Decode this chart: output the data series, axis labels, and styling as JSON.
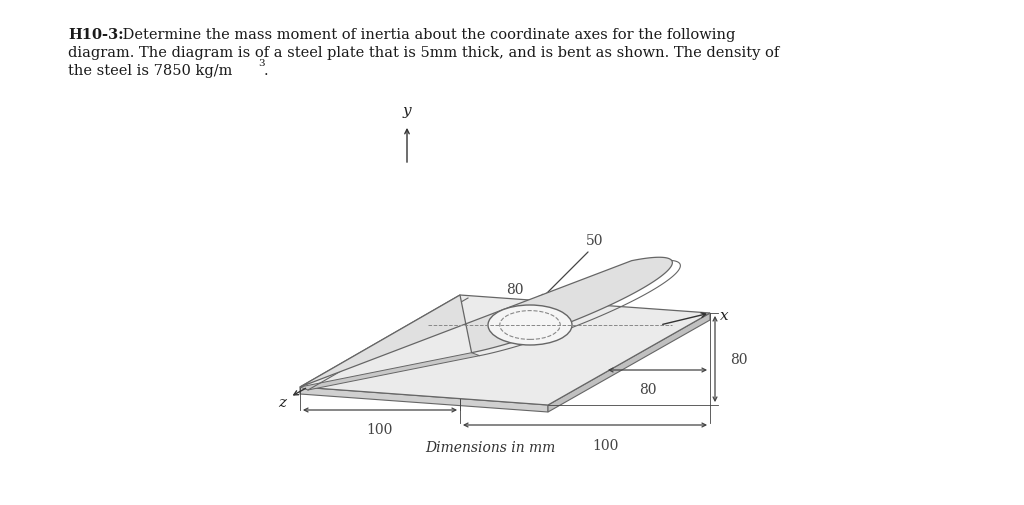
{
  "title_bold": "H10-3:",
  "title_normal": " Determine the mass moment of inertia about the coordinate axes for the following",
  "title_line2": "diagram. The diagram is of a steel plate that is 5mm thick, and is bent as shown. The density of",
  "title_line3": "the steel is 7850 kg/m",
  "title_sup": "3",
  "title_period": ".",
  "caption": "Dimensions in mm",
  "bg_color": "#ffffff",
  "plate_face_color": "#e8e8e8",
  "plate_side_color": "#d0d0d0",
  "plate_edge_color": "#666666",
  "vert_face_color": "#d8d8d8",
  "vert_side_color": "#c0c0c0",
  "dim_color": "#444444",
  "labels": {
    "y_axis": "y",
    "x_axis": "x",
    "z_axis": "z",
    "dim_80_radius": "80",
    "dim_50": "50",
    "dim_100_z": "100",
    "dim_100_x": "100",
    "dim_80_right": "80",
    "dim_80_far": "80"
  },
  "fig_width": 10.24,
  "fig_height": 5.06,
  "dpi": 100
}
